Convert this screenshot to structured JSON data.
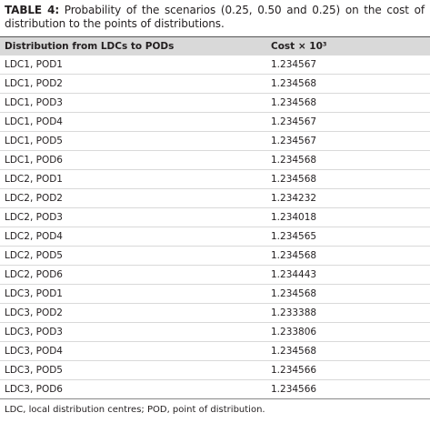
{
  "caption": {
    "label": "TABLE 4:",
    "text": "Probability of the scenarios (0.25, 0.50 and 0.25) on the cost of distribution to the points of distributions."
  },
  "table": {
    "header": [
      "Distribution from LDCs to PODs",
      "Cost × 10³"
    ],
    "rows": [
      [
        "LDC1, POD1",
        "1.234567"
      ],
      [
        "LDC1, POD2",
        "1.234568"
      ],
      [
        "LDC1, POD3",
        "1.234568"
      ],
      [
        "LDC1, POD4",
        "1.234567"
      ],
      [
        "LDC1, POD5",
        "1.234567"
      ],
      [
        "LDC1, POD6",
        "1.234568"
      ],
      [
        "LDC2, POD1",
        "1.234568"
      ],
      [
        "LDC2, POD2",
        "1.234232"
      ],
      [
        "LDC2, POD3",
        "1.234018"
      ],
      [
        "LDC2, POD4",
        "1.234565"
      ],
      [
        "LDC2, POD5",
        "1.234568"
      ],
      [
        "LDC2, POD6",
        "1.234443"
      ],
      [
        "LDC3, POD1",
        "1.234568"
      ],
      [
        "LDC3, POD2",
        "1.233388"
      ],
      [
        "LDC3, POD3",
        "1.233806"
      ],
      [
        "LDC3, POD4",
        "1.234568"
      ],
      [
        "LDC3, POD5",
        "1.234566"
      ],
      [
        "LDC3, POD6",
        "1.234566"
      ]
    ]
  },
  "footnote": "LDC, local distribution centres; POD, point of distribution."
}
